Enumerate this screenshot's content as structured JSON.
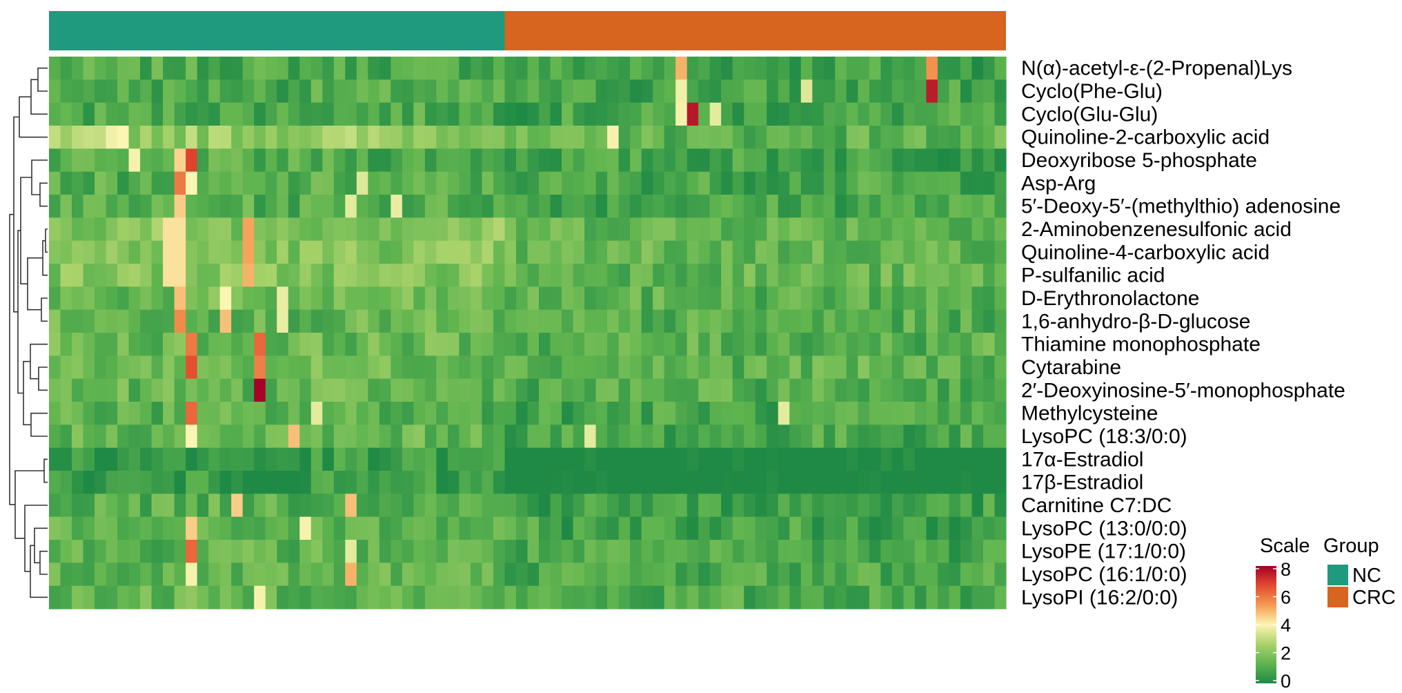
{
  "chart_data": {
    "type": "heatmap",
    "title": "",
    "rows": [
      "N(α)-acetyl-ε-(2-Propenal)Lys",
      "Cyclo(Phe-Glu)",
      "Cyclo(Glu-Glu)",
      "Quinoline-2-carboxylic acid",
      "Deoxyribose 5-phosphate",
      "Asp-Arg",
      "5′-Deoxy-5′-(methylthio) adenosine",
      "2-Aminobenzenesulfonic acid",
      "Quinoline-4-carboxylic acid",
      "P-sulfanilic acid",
      "D-Erythronolactone",
      "1,6-anhydro-β-D-glucose",
      "Thiamine monophosphate",
      "Cytarabine",
      "2′-Deoxyinosine-5′-monophosphate",
      "Methylcysteine",
      "LysoPC (18:3/0:0)",
      "17α-Estradiol",
      "17β-Estradiol",
      "Carnitine C7:DC",
      "LysoPC (13:0/0:0)",
      "LysoPE (17:1/0:0)",
      "LysoPC (16:1/0:0)",
      "LysoPI (16:2/0:0)"
    ],
    "group_annotation": {
      "name": "Group",
      "groups": [
        {
          "label": "NC",
          "color": "#1f9a7e",
          "columns": 40
        },
        {
          "label": "CRC",
          "color": "#d7641f",
          "columns": 44
        }
      ]
    },
    "n_columns": 84,
    "color_scale": {
      "name": "Scale",
      "min": 0,
      "max": 8,
      "ticks": [
        "0",
        "2",
        "4",
        "6",
        "8"
      ],
      "colors": [
        "#1f8a45",
        "#5fb44f",
        "#a9d26a",
        "#fcf5b3",
        "#f59b52",
        "#e24b2f",
        "#a50026"
      ]
    },
    "baseline_values": [
      1.0,
      1.0,
      1.0,
      2.4,
      1.0,
      1.1,
      1.1,
      2.1,
      2.0,
      2.0,
      1.5,
      1.4,
      1.5,
      1.6,
      1.4,
      1.2,
      1.4,
      0.5,
      0.5,
      1.2,
      1.2,
      1.3,
      1.4,
      1.4
    ],
    "group_shift": [
      -0.2,
      -0.2,
      -0.2,
      -1.1,
      -0.2,
      -0.2,
      -0.2,
      -0.6,
      -0.6,
      -0.6,
      -0.3,
      -0.3,
      -0.3,
      -0.3,
      -0.3,
      -0.3,
      -0.5,
      -1.0,
      -1.0,
      -0.5,
      -0.4,
      -0.4,
      -0.4,
      -0.4
    ],
    "highlights": [
      {
        "row": 0,
        "col": 55,
        "value": 5.0
      },
      {
        "row": 0,
        "col": 77,
        "value": 5.5
      },
      {
        "row": 1,
        "col": 55,
        "value": 3.8
      },
      {
        "row": 1,
        "col": 77,
        "value": 7.5
      },
      {
        "row": 1,
        "col": 66,
        "value": 3.5
      },
      {
        "row": 2,
        "col": 56,
        "value": 7.6
      },
      {
        "row": 2,
        "col": 55,
        "value": 3.9
      },
      {
        "row": 2,
        "col": 58,
        "value": 3.6
      },
      {
        "row": 3,
        "col": 5,
        "value": 3.8
      },
      {
        "row": 3,
        "col": 6,
        "value": 4.0
      },
      {
        "row": 3,
        "col": 49,
        "value": 3.9
      },
      {
        "row": 4,
        "col": 12,
        "value": 6.8
      },
      {
        "row": 4,
        "col": 11,
        "value": 4.5
      },
      {
        "row": 4,
        "col": 7,
        "value": 3.9
      },
      {
        "row": 5,
        "col": 11,
        "value": 5.9
      },
      {
        "row": 5,
        "col": 12,
        "value": 4.0
      },
      {
        "row": 5,
        "col": 27,
        "value": 3.5
      },
      {
        "row": 6,
        "col": 11,
        "value": 4.6
      },
      {
        "row": 6,
        "col": 26,
        "value": 3.6
      },
      {
        "row": 6,
        "col": 30,
        "value": 3.7
      },
      {
        "row": 7,
        "col": 10,
        "value": 4.3
      },
      {
        "row": 7,
        "col": 11,
        "value": 4.3
      },
      {
        "row": 7,
        "col": 17,
        "value": 5.2
      },
      {
        "row": 8,
        "col": 10,
        "value": 4.3
      },
      {
        "row": 8,
        "col": 11,
        "value": 4.3
      },
      {
        "row": 8,
        "col": 17,
        "value": 5.2
      },
      {
        "row": 9,
        "col": 10,
        "value": 4.3
      },
      {
        "row": 9,
        "col": 11,
        "value": 4.3
      },
      {
        "row": 9,
        "col": 17,
        "value": 5.0
      },
      {
        "row": 10,
        "col": 11,
        "value": 4.8
      },
      {
        "row": 10,
        "col": 15,
        "value": 4.0
      },
      {
        "row": 10,
        "col": 20,
        "value": 3.7
      },
      {
        "row": 11,
        "col": 11,
        "value": 5.6
      },
      {
        "row": 11,
        "col": 15,
        "value": 4.8
      },
      {
        "row": 11,
        "col": 20,
        "value": 3.7
      },
      {
        "row": 12,
        "col": 12,
        "value": 5.9
      },
      {
        "row": 12,
        "col": 18,
        "value": 6.2
      },
      {
        "row": 13,
        "col": 12,
        "value": 6.6
      },
      {
        "row": 13,
        "col": 18,
        "value": 5.8
      },
      {
        "row": 14,
        "col": 18,
        "value": 8.0
      },
      {
        "row": 15,
        "col": 12,
        "value": 6.2
      },
      {
        "row": 15,
        "col": 23,
        "value": 3.6
      },
      {
        "row": 15,
        "col": 64,
        "value": 3.6
      },
      {
        "row": 16,
        "col": 12,
        "value": 4.0
      },
      {
        "row": 16,
        "col": 21,
        "value": 4.8
      },
      {
        "row": 16,
        "col": 47,
        "value": 3.6
      },
      {
        "row": 19,
        "col": 16,
        "value": 4.6
      },
      {
        "row": 19,
        "col": 26,
        "value": 4.8
      },
      {
        "row": 20,
        "col": 12,
        "value": 4.6
      },
      {
        "row": 20,
        "col": 22,
        "value": 3.9
      },
      {
        "row": 21,
        "col": 12,
        "value": 6.2
      },
      {
        "row": 21,
        "col": 26,
        "value": 3.6
      },
      {
        "row": 22,
        "col": 12,
        "value": 3.9
      },
      {
        "row": 22,
        "col": 26,
        "value": 5.0
      },
      {
        "row": 23,
        "col": 18,
        "value": 3.9
      }
    ]
  }
}
